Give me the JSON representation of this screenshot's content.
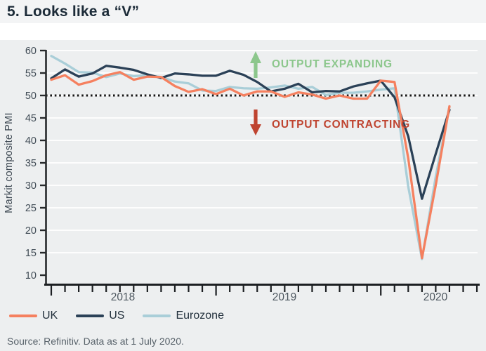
{
  "title": "5. Looks like a “V”",
  "chart_data": {
    "type": "line",
    "title": "5. Looks like a “V”",
    "ylabel": "Markit composite PMI",
    "ylim": [
      10,
      60
    ],
    "ytick_step": 5,
    "x_start": "2018-01",
    "x_frequency": "monthly",
    "x_year_labels": [
      "2018",
      "2019",
      "2020"
    ],
    "grid": true,
    "legend_position": "bottom-left",
    "reference_line": {
      "value": 50,
      "style": "dotted",
      "color": "#151515"
    },
    "annotations": [
      {
        "text": "OUTPUT EXPANDING",
        "arrow": "up",
        "color": "#8cc78c"
      },
      {
        "text": "OUTPUT CONTRACTING",
        "arrow": "down",
        "color": "#bf4430"
      }
    ],
    "series": [
      {
        "name": "UK",
        "color": "#f5805f",
        "values": [
          53.5,
          54.5,
          52.4,
          53.2,
          54.5,
          55.2,
          53.5,
          54.2,
          54.1,
          52.1,
          50.8,
          51.4,
          50.3,
          51.5,
          50.0,
          50.9,
          50.9,
          49.7,
          50.7,
          50.2,
          49.3,
          50.0,
          49.3,
          49.3,
          53.3,
          53.0,
          36.0,
          13.8,
          30.0,
          47.6
        ]
      },
      {
        "name": "US",
        "color": "#2b4157",
        "values": [
          53.8,
          55.8,
          54.2,
          54.9,
          56.6,
          56.2,
          55.7,
          54.7,
          53.9,
          54.9,
          54.7,
          54.4,
          54.4,
          55.5,
          54.6,
          53.0,
          50.9,
          51.5,
          52.6,
          50.7,
          51.0,
          50.9,
          52.0,
          52.7,
          53.3,
          49.6,
          40.9,
          27.0,
          37.0,
          46.8
        ]
      },
      {
        "name": "Eurozone",
        "color": "#a9ced8",
        "values": [
          58.8,
          57.1,
          55.2,
          55.1,
          54.1,
          54.9,
          54.3,
          54.5,
          54.1,
          53.1,
          52.7,
          51.1,
          51.0,
          51.9,
          51.6,
          51.5,
          51.8,
          52.2,
          51.5,
          51.9,
          50.1,
          50.6,
          50.6,
          50.9,
          51.3,
          51.6,
          29.7,
          13.6,
          31.9,
          47.5
        ]
      }
    ]
  },
  "legend": {
    "items": [
      {
        "label": "UK"
      },
      {
        "label": "US"
      },
      {
        "label": "Eurozone"
      }
    ]
  },
  "source": "Source: Refinitiv. Data as at 1 July 2020."
}
